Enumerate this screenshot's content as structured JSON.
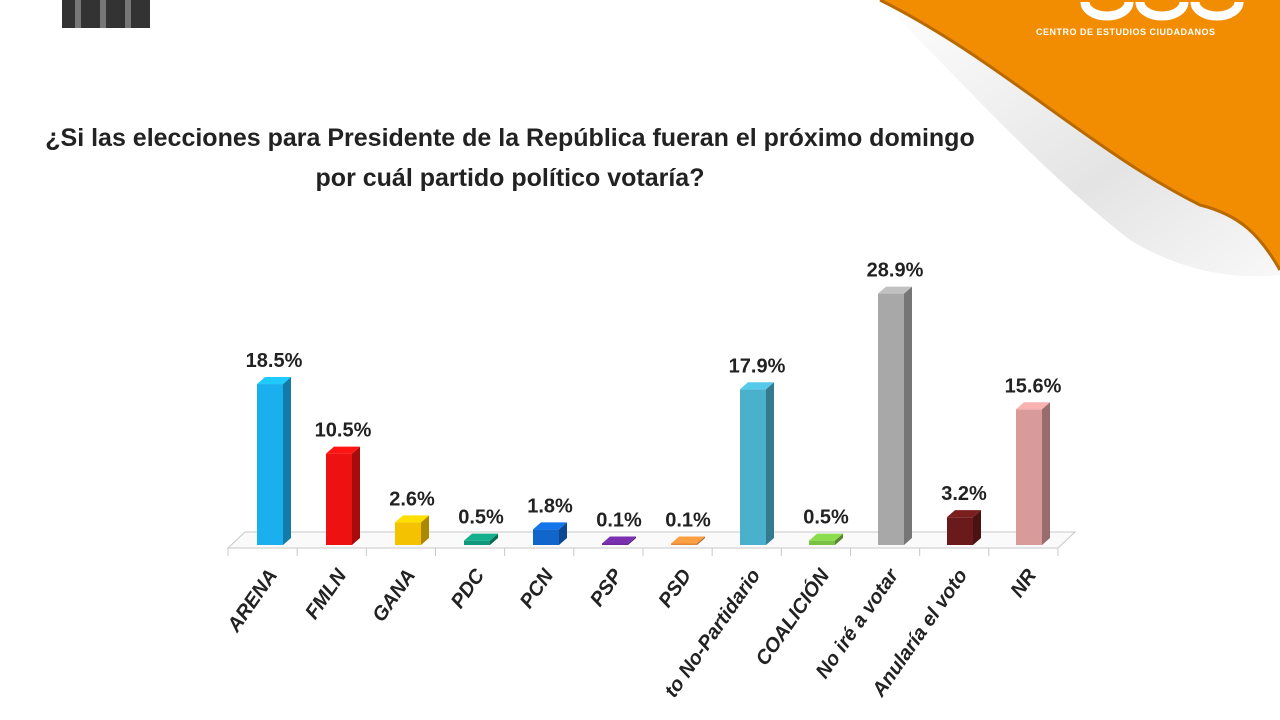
{
  "header": {
    "brand_subtitle": "CENTRO DE ESTUDIOS CIUDADANOS",
    "brand_color": "#f28c00"
  },
  "chart_data": {
    "type": "bar",
    "title": "¿Si las elecciones para Presidente de la República fueran el próximo domingo por cuál partido político votaría?",
    "categories": [
      "ARENA",
      "FMLN",
      "GANA",
      "PDC",
      "PCN",
      "PSP",
      "PSD",
      "to No-Partidario",
      "COALICIÓN",
      "No iré a votar",
      "Anularía el voto",
      "NR"
    ],
    "values": [
      18.5,
      10.5,
      2.6,
      0.5,
      1.8,
      0.1,
      0.1,
      17.9,
      0.5,
      28.9,
      3.2,
      15.6
    ],
    "labels": [
      "18.5%",
      "10.5%",
      "2.6%",
      "0.5%",
      "1.8%",
      "0.1%",
      "0.1%",
      "17.9%",
      "0.5%",
      "28.9%",
      "3.2%",
      "15.6%"
    ],
    "colors": [
      "#1ab0ef",
      "#ee1111",
      "#f5c200",
      "#11987a",
      "#1166cc",
      "#6a2a9a",
      "#e08a3a",
      "#4ab0cc",
      "#7ac043",
      "#a8a8a8",
      "#6a1a1a",
      "#d99a9a"
    ],
    "unit": "%",
    "style": "3d-column",
    "grid": false,
    "legend": "none",
    "xlabel": "",
    "ylabel": ""
  }
}
